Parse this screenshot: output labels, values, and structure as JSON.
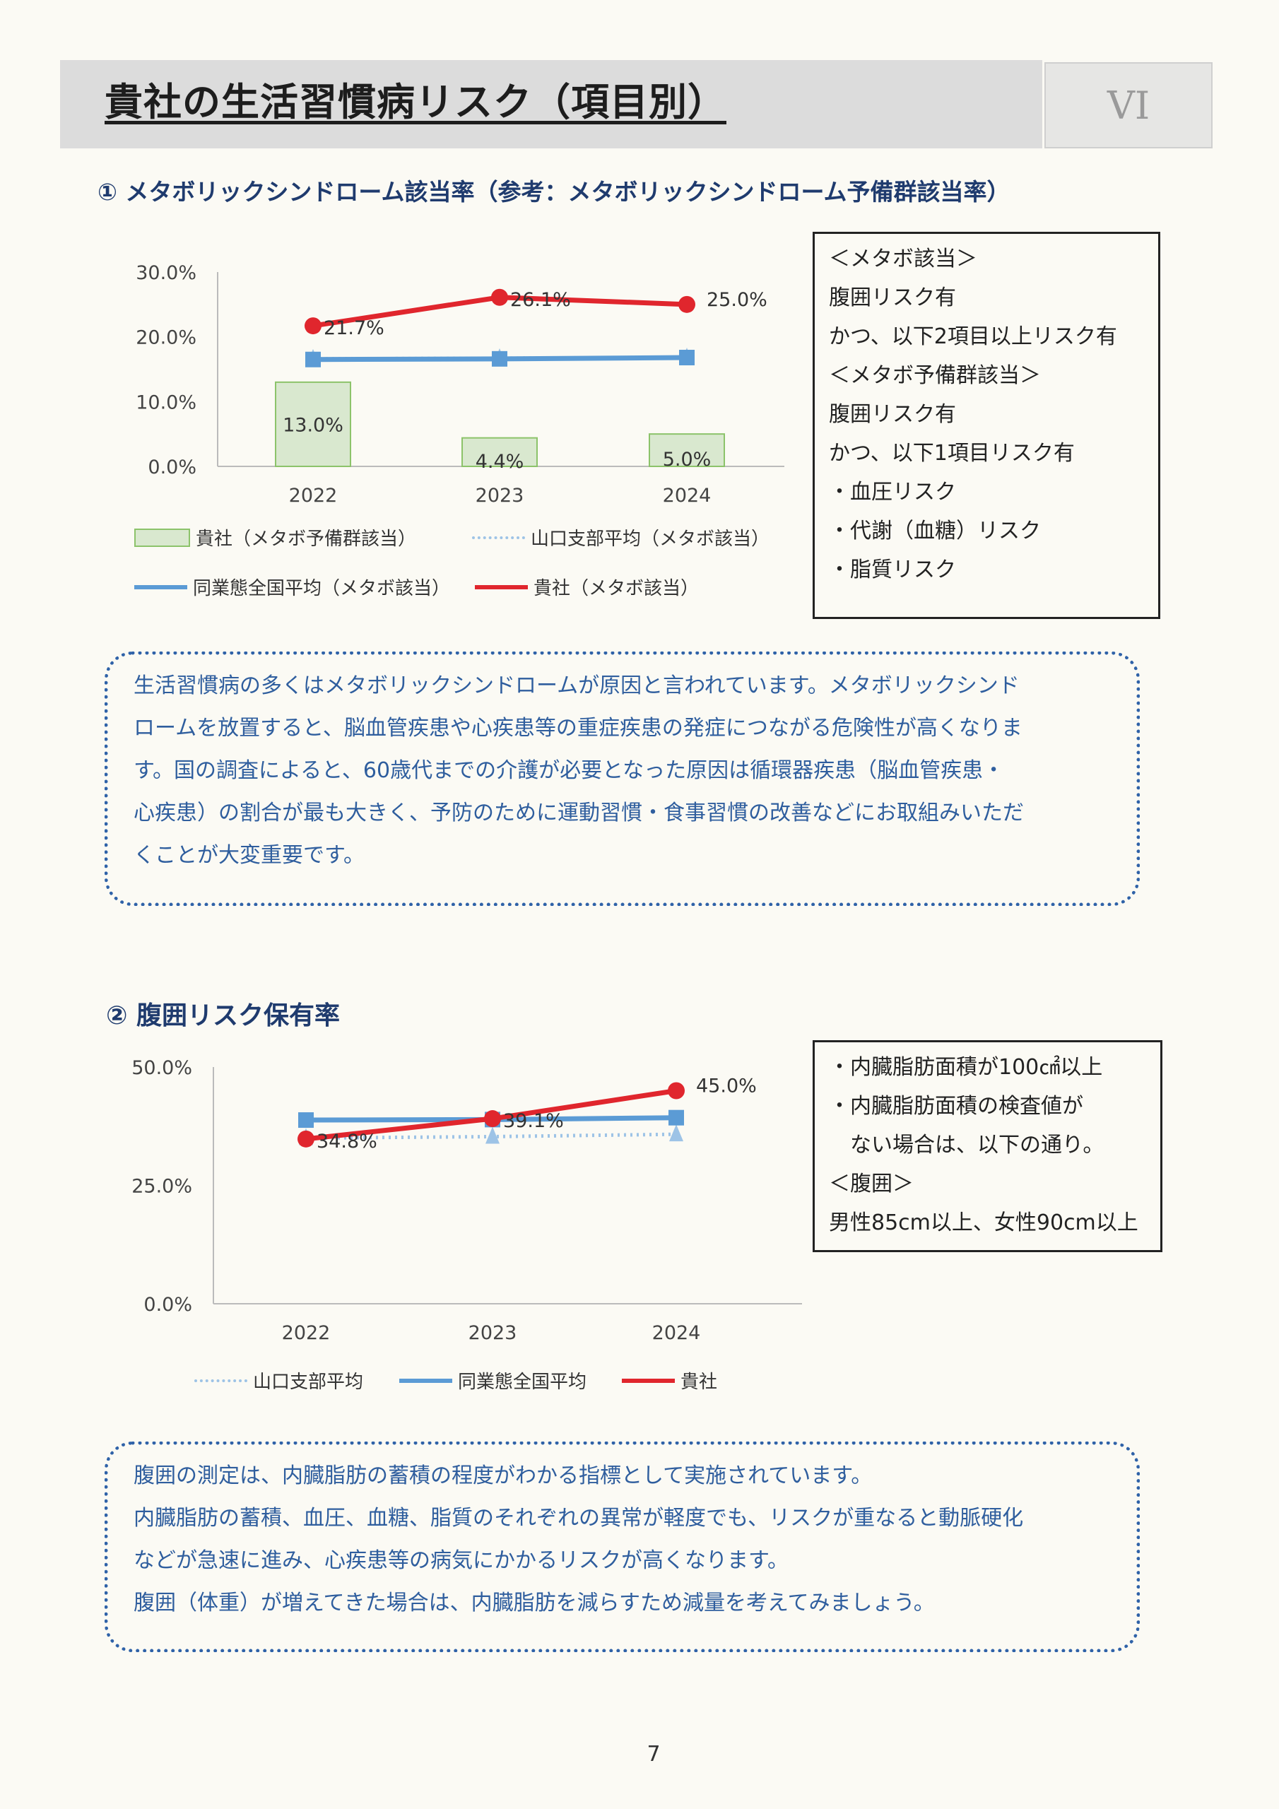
{
  "header": {
    "title": "貴社の生活習慣病リスク（項目別）",
    "section": "VI"
  },
  "section1": {
    "title": "① メタボリックシンドローム該当率（参考：メタボリックシンドローム予備群該当率）",
    "definition_box": [
      "＜メタボ該当＞",
      "腹囲リスク有",
      "かつ、以下2項目以上リスク有",
      "＜メタボ予備群該当＞",
      "腹囲リスク有",
      "かつ、以下1項目リスク有",
      "・血圧リスク",
      "・代謝（血糖）リスク",
      "・脂質リスク"
    ],
    "note": [
      "生活習慣病の多くはメタボリックシンドロームが原因と言われています。メタボリックシンド",
      "ロームを放置すると、脳血管疾患や心疾患等の重症疾患の発症につながる危険性が高くなりま",
      "す。国の調査によると、60歳代までの介護が必要となった原因は循環器疾患（脳血管疾患・",
      "心疾患）の割合が最も大きく、予防のために運動習慣・食事習慣の改善などにお取組みいただ",
      "くことが大変重要です。"
    ]
  },
  "section2": {
    "title": "② 腹囲リスク保有率",
    "definition_box": [
      "・内臓脂肪面積が100㎠以上",
      "・内臓脂肪面積の検査値が",
      "　ない場合は、以下の通り。",
      "＜腹囲＞",
      "男性85cm以上、女性90cm以上"
    ],
    "note": [
      "腹囲の測定は、内臓脂肪の蓄積の程度がわかる指標として実施されています。",
      "内臓脂肪の蓄積、血圧、血糖、脂質のそれぞれの異常が軽度でも、リスクが重なると動脈硬化",
      "などが急速に進み、心疾患等の病気にかかるリスクが高くなります。",
      "腹囲（体重）が増えてきた場合は、内臓脂肪を減らすため減量を考えてみましょう。"
    ]
  },
  "page_number": "7",
  "chart_data": [
    {
      "type": "bar+line",
      "categories": [
        "2022",
        "2023",
        "2024"
      ],
      "ylim": [
        0,
        30
      ],
      "yticks": [
        "0.0%",
        "10.0%",
        "20.0%",
        "30.0%"
      ],
      "series": [
        {
          "name": "貴社（メタボ予備群該当）",
          "kind": "bar",
          "values": [
            13.0,
            4.4,
            5.0
          ],
          "labels": [
            "13.0%",
            "4.4%",
            "5.0%"
          ],
          "color": "#d9e8cf",
          "stroke": "#8cc36a"
        },
        {
          "name": "山口支部平均（メタボ該当）",
          "kind": "dotted-line",
          "values": [
            16.6,
            16.7,
            16.8
          ],
          "color": "#9dc3e6"
        },
        {
          "name": "同業態全国平均（メタボ該当）",
          "kind": "line",
          "values": [
            16.5,
            16.6,
            16.8
          ],
          "color": "#5b9bd5"
        },
        {
          "name": "貴社（メタボ該当）",
          "kind": "line",
          "values": [
            21.7,
            26.1,
            25.0
          ],
          "labels": [
            "21.7%",
            "26.1%",
            "25.0%"
          ],
          "color": "#e0262d"
        }
      ]
    },
    {
      "type": "line",
      "categories": [
        "2022",
        "2023",
        "2024"
      ],
      "ylim": [
        0,
        50
      ],
      "yticks": [
        "0.0%",
        "25.0%",
        "50.0%"
      ],
      "series": [
        {
          "name": "山口支部平均",
          "kind": "dotted-line",
          "values": [
            35.0,
            35.3,
            35.8
          ],
          "color": "#9dc3e6"
        },
        {
          "name": "同業態全国平均",
          "kind": "line",
          "values": [
            38.8,
            38.9,
            39.3
          ],
          "color": "#5b9bd5"
        },
        {
          "name": "貴社",
          "kind": "line",
          "values": [
            34.8,
            39.1,
            45.0
          ],
          "labels": [
            "34.8%",
            "39.1%",
            "45.0%"
          ],
          "color": "#e0262d"
        }
      ]
    }
  ]
}
